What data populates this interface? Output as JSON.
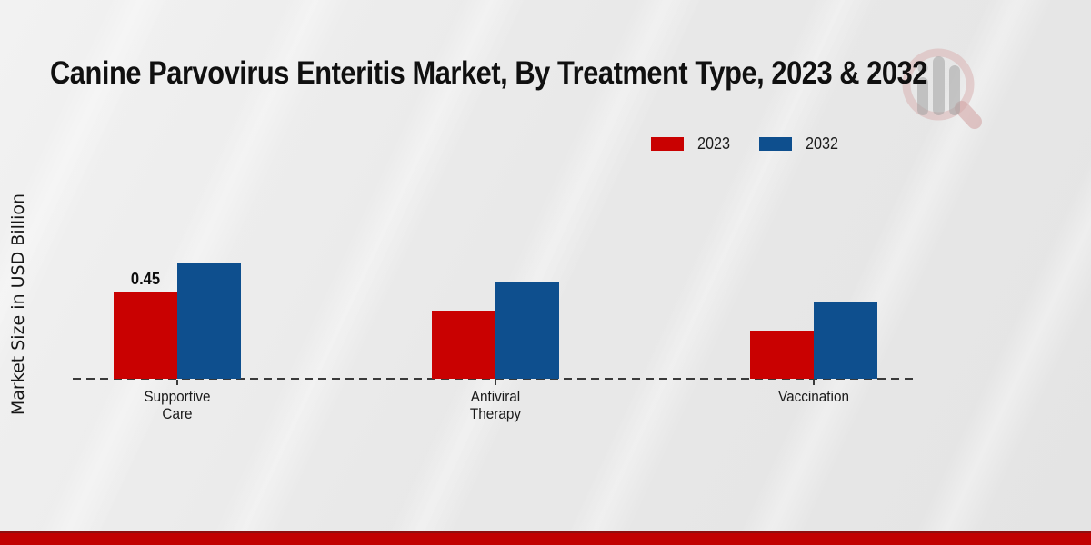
{
  "title": "Canine Parvovirus Enteritis Market, By Treatment Type, 2023 & 2032",
  "ylabel": "Market Size in USD Billion",
  "watermark_icon": "magnifier-bar-chart-logo",
  "colors": {
    "series_2023": "#c90101",
    "series_2032": "#0e4f8e",
    "axis": "#3a3a3a",
    "footer_band": "#c10101",
    "footer_band_edge": "#8e1010",
    "background": "#e9e9e9",
    "title_text": "#101010",
    "watermark_ring": "#d9b2b2",
    "watermark_bars": "#a3a3a3"
  },
  "chart_data": {
    "type": "bar",
    "categories": [
      "Supportive Care",
      "Antiviral Therapy",
      "Vaccination"
    ],
    "category_label_lines": [
      [
        "Supportive",
        "Care"
      ],
      [
        "Antiviral",
        "Therapy"
      ],
      [
        "Vaccination"
      ]
    ],
    "series": [
      {
        "name": "2023",
        "color": "#c90101",
        "values": [
          0.45,
          0.35,
          0.25
        ]
      },
      {
        "name": "2032",
        "color": "#0e4f8e",
        "values": [
          0.6,
          0.5,
          0.4
        ]
      }
    ],
    "value_labels": [
      {
        "series_index": 0,
        "category_index": 0,
        "text": "0.45"
      }
    ],
    "title": "Canine Parvovirus Enteritis Market, By Treatment Type, 2023 & 2032",
    "xlabel": "",
    "ylabel": "Market Size in USD Billion",
    "unit": "USD Billion",
    "ylim": [
      0,
      0.7
    ],
    "grid": false,
    "axis_style": "dashed-baseline-only",
    "legend_position": "top-right"
  }
}
